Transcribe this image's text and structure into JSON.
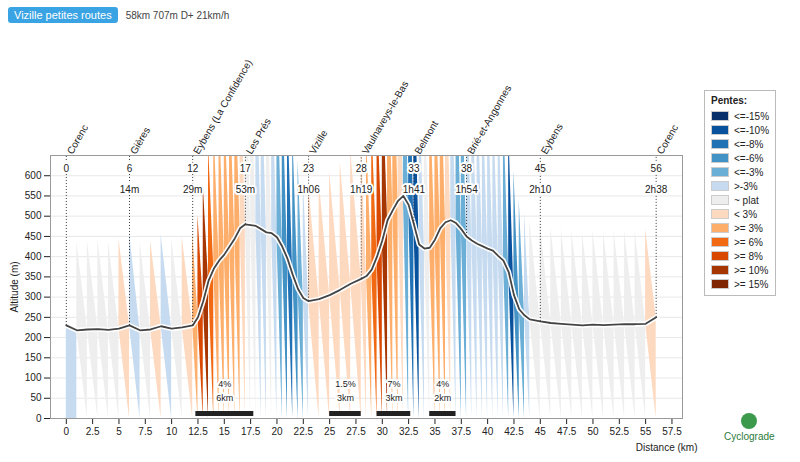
{
  "chart_data": {
    "type": "area",
    "title": "Vizille petites routes",
    "subtitle": "58km 707m D+ 21km/h",
    "x_label": "Distance (km)",
    "y_label": "Altitude (m)",
    "x": [
      0,
      1,
      2,
      3,
      4,
      5,
      6,
      7,
      8,
      9,
      10,
      11,
      12,
      12.5,
      13,
      13.5,
      14,
      14.5,
      15,
      15.5,
      16,
      16.5,
      17,
      17.5,
      18,
      18.5,
      19,
      19.5,
      20,
      20.5,
      21,
      21.5,
      22,
      22.5,
      23,
      24,
      25,
      26,
      27,
      28,
      28.5,
      29,
      29.5,
      30,
      30.5,
      31,
      31.5,
      32,
      32.5,
      33,
      33.5,
      34,
      34.5,
      35,
      35.5,
      36,
      36.5,
      37,
      37.5,
      38,
      38.5,
      39,
      39.5,
      40,
      40.5,
      41,
      41.5,
      42,
      42.5,
      43,
      43.5,
      44,
      45,
      46,
      47,
      48,
      49,
      50,
      51,
      52,
      53,
      54,
      55,
      56
    ],
    "values": [
      230,
      218,
      220,
      221,
      219,
      222,
      230,
      218,
      220,
      228,
      222,
      225,
      230,
      250,
      290,
      340,
      370,
      390,
      405,
      425,
      445,
      470,
      480,
      478,
      476,
      468,
      460,
      458,
      448,
      425,
      395,
      355,
      320,
      298,
      290,
      295,
      305,
      318,
      333,
      345,
      352,
      368,
      400,
      440,
      490,
      515,
      538,
      550,
      528,
      480,
      430,
      420,
      422,
      442,
      470,
      485,
      490,
      483,
      468,
      450,
      440,
      432,
      426,
      420,
      415,
      402,
      390,
      362,
      305,
      270,
      255,
      245,
      240,
      236,
      234,
      232,
      230,
      232,
      231,
      232,
      233,
      233,
      234,
      250
    ],
    "colors": [
      "#c6dbef",
      "#eeeeee",
      "#eeeeee",
      "#eeeeee",
      "#eeeeee",
      "#fdd9c0",
      "#c6dbef",
      "#eeeeee",
      "#fdd9c0",
      "#c6dbef",
      "#eeeeee",
      "#fdd9c0",
      "#fdae6b",
      "#d94801",
      "#a63603",
      "#f16913",
      "#fdae6b",
      "#fdae6b",
      "#fdae6b",
      "#fdae6b",
      "#fdae6b",
      "#fdd9c0",
      "#eeeeee",
      "#eeeeee",
      "#c6dbef",
      "#c6dbef",
      "#eeeeee",
      "#c6dbef",
      "#6baed6",
      "#4292c6",
      "#2171b5",
      "#4292c6",
      "#6baed6",
      "#c6dbef",
      "#fdd9c0",
      "#fdd9c0",
      "#fdd9c0",
      "#fdd9c0",
      "#fdd9c0",
      "#fdd9c0",
      "#fdae6b",
      "#f16913",
      "#d94801",
      "#a63603",
      "#fdae6b",
      "#fdae6b",
      "#fdd9c0",
      "#6baed6",
      "#2171b5",
      "#08519c",
      "#c6dbef",
      "#eeeeee",
      "#fdae6b",
      "#fdae6b",
      "#fdae6b",
      "#fdd9c0",
      "#c6dbef",
      "#6baed6",
      "#6baed6",
      "#c6dbef",
      "#c6dbef",
      "#c6dbef",
      "#c6dbef",
      "#c6dbef",
      "#c6dbef",
      "#c6dbef",
      "#6baed6",
      "#08519c",
      "#4292c6",
      "#6baed6",
      "#c6dbef",
      "#eeeeee",
      "#eeeeee",
      "#eeeeee",
      "#eeeeee",
      "#eeeeee",
      "#eeeeee",
      "#eeeeee",
      "#eeeeee",
      "#eeeeee",
      "#eeeeee",
      "#eeeeee",
      "#fdd9c0"
    ],
    "xlim": [
      -1.5,
      58.5
    ],
    "xticks": [
      0,
      2.5,
      5,
      7.5,
      10,
      12.5,
      15,
      17.5,
      20,
      22.5,
      25,
      27.5,
      30,
      32.5,
      35,
      37.5,
      40,
      42.5,
      45,
      47.5,
      50,
      52.5,
      55,
      57.5
    ],
    "ylim": [
      0,
      650
    ],
    "yticks": [
      0,
      50,
      100,
      150,
      200,
      250,
      300,
      350,
      400,
      450,
      500,
      550,
      600
    ],
    "grid": true,
    "legend": "right",
    "legend_title": "Pentes:",
    "legend_items": [
      {
        "label": "<=-15%",
        "color": "#08306b"
      },
      {
        "label": "<=-10%",
        "color": "#08519c"
      },
      {
        "label": "<=-8%",
        "color": "#2171b5"
      },
      {
        "label": "<=-6%",
        "color": "#4292c6"
      },
      {
        "label": "<=-3%",
        "color": "#6baed6"
      },
      {
        "label": ">-3%",
        "color": "#c6dbef"
      },
      {
        "label": "~ plat",
        "color": "#eeeeee"
      },
      {
        "label": "< 3%",
        "color": "#fdd9c0"
      },
      {
        "label": ">= 3%",
        "color": "#fdae6b"
      },
      {
        "label": ">= 6%",
        "color": "#f16913"
      },
      {
        "label": ">= 8%",
        "color": "#d94801"
      },
      {
        "label": ">= 10%",
        "color": "#a63603"
      },
      {
        "label": ">= 15%",
        "color": "#7f2704"
      }
    ],
    "waypoints": [
      {
        "km": 0,
        "name": "Corenc",
        "time": null
      },
      {
        "km": 6,
        "name": "Gières",
        "time": "14m"
      },
      {
        "km": 12,
        "name": "Eybens (La Confidence)",
        "time": "29m"
      },
      {
        "km": 17,
        "name": "Les Prés",
        "time": "53m"
      },
      {
        "km": 23,
        "name": "Vizille",
        "time": "1h06"
      },
      {
        "km": 28,
        "name": "Vaulnaveys-le-Bas",
        "time": "1h19"
      },
      {
        "km": 33,
        "name": "Belmont",
        "time": "1h41"
      },
      {
        "km": 38,
        "name": "Brié-et-Angonnes",
        "time": "1h54"
      },
      {
        "km": 45,
        "name": "Eybens",
        "time": "2h10"
      },
      {
        "km": 56,
        "name": "Corenc",
        "time": "2h38"
      }
    ],
    "climbs": [
      {
        "start": 12.3,
        "end": 17.8,
        "grade": "4%",
        "length": "6km"
      },
      {
        "start": 25,
        "end": 28,
        "grade": "1.5%",
        "length": "3km"
      },
      {
        "start": 29.5,
        "end": 32.7,
        "grade": "7%",
        "length": "3km"
      },
      {
        "start": 34.5,
        "end": 37,
        "grade": "4%",
        "length": "2km"
      }
    ],
    "logo": "Cyclograde"
  }
}
